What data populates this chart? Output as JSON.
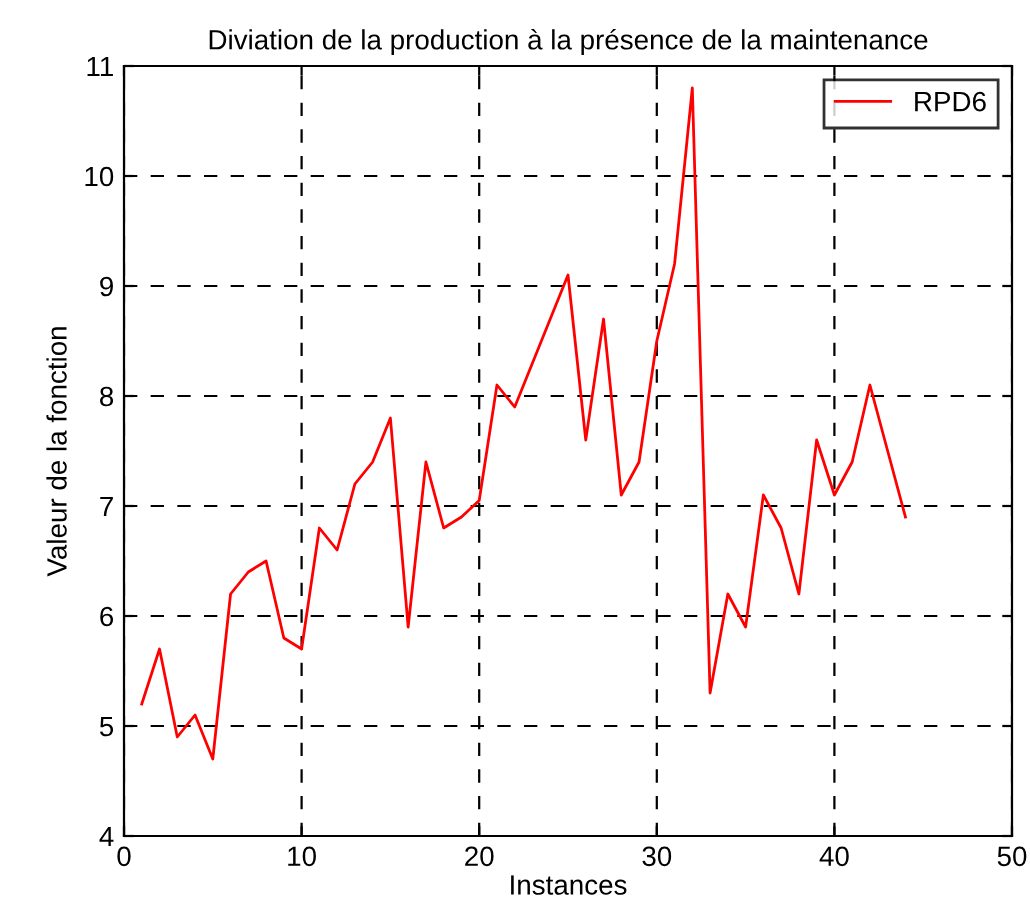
{
  "chart_data": {
    "type": "line",
    "title": "Diviation de la production à la présence de la maintenance",
    "xlabel": "Instances",
    "ylabel": "Valeur de la fonction",
    "x": [
      1,
      2,
      3,
      4,
      5,
      6,
      7,
      8,
      9,
      10,
      11,
      12,
      13,
      14,
      15,
      16,
      17,
      18,
      19,
      20,
      21,
      22,
      23,
      24,
      25,
      26,
      27,
      28,
      29,
      30,
      31,
      32,
      33,
      34,
      35,
      36,
      37,
      38,
      39,
      40,
      41,
      42,
      43,
      44
    ],
    "series": [
      {
        "name": "RPD6",
        "color": "#ff0000",
        "values": [
          5.2,
          5.7,
          4.9,
          5.1,
          4.7,
          6.2,
          6.4,
          6.5,
          5.8,
          5.7,
          6.8,
          6.6,
          7.2,
          7.4,
          7.8,
          5.9,
          7.4,
          6.8,
          6.9,
          7.05,
          8.1,
          7.9,
          8.3,
          8.7,
          9.1,
          7.6,
          8.7,
          7.1,
          7.4,
          8.5,
          9.2,
          10.8,
          5.3,
          6.2,
          5.9,
          7.1,
          6.8,
          6.2,
          7.6,
          7.1,
          7.4,
          8.1,
          7.5,
          6.9
        ]
      }
    ],
    "xlim": [
      0,
      50
    ],
    "xticks": [
      0,
      10,
      20,
      30,
      40,
      50
    ],
    "ylim": [
      4,
      11
    ],
    "yticks": [
      4,
      5,
      6,
      7,
      8,
      9,
      10,
      11
    ],
    "grid": true,
    "legend": "top right",
    "marker": "none",
    "line_style": "solid"
  }
}
